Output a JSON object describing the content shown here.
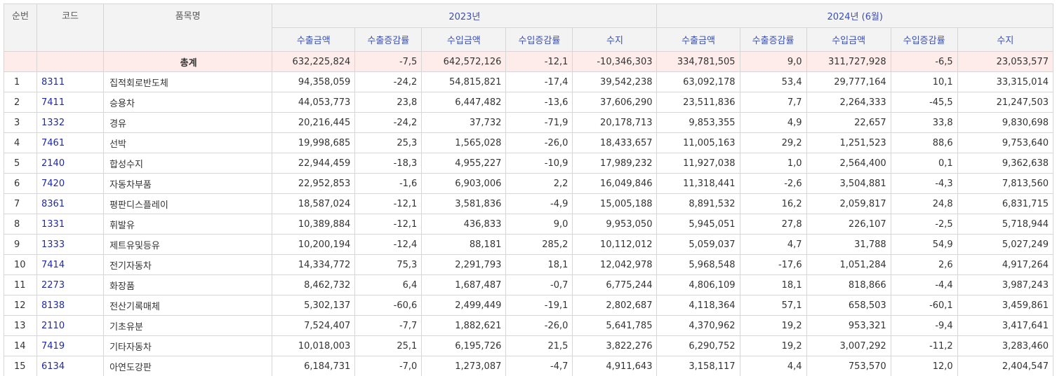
{
  "headers": {
    "rank": "순번",
    "code": "코드",
    "name": "품목명",
    "year1": "2023년",
    "year2": "2024년 (6월)",
    "cols": [
      "수출금액",
      "수출증감률",
      "수입금액",
      "수입증감률",
      "수지"
    ]
  },
  "total": {
    "name": "총계",
    "values": [
      "632,225,824",
      "-7,5",
      "642,572,126",
      "-12,1",
      "-10,346,303",
      "334,781,505",
      "9,0",
      "311,727,928",
      "-6,5",
      "23,053,577"
    ]
  },
  "rows": [
    {
      "rank": "1",
      "code": "8311",
      "name": "집적회로반도체",
      "values": [
        "94,358,059",
        "-24,2",
        "54,815,821",
        "-17,4",
        "39,542,238",
        "63,092,178",
        "53,4",
        "29,777,164",
        "10,1",
        "33,315,014"
      ]
    },
    {
      "rank": "2",
      "code": "7411",
      "name": "승용차",
      "values": [
        "44,053,773",
        "23,8",
        "6,447,482",
        "-13,6",
        "37,606,290",
        "23,511,836",
        "7,7",
        "2,264,333",
        "-45,5",
        "21,247,503"
      ]
    },
    {
      "rank": "3",
      "code": "1332",
      "name": "경유",
      "values": [
        "20,216,445",
        "-24,2",
        "37,732",
        "-71,9",
        "20,178,713",
        "9,853,355",
        "4,9",
        "22,657",
        "33,8",
        "9,830,698"
      ]
    },
    {
      "rank": "4",
      "code": "7461",
      "name": "선박",
      "values": [
        "19,998,685",
        "25,3",
        "1,565,028",
        "-26,0",
        "18,433,657",
        "11,005,163",
        "29,2",
        "1,251,523",
        "88,6",
        "9,753,640"
      ]
    },
    {
      "rank": "5",
      "code": "2140",
      "name": "합성수지",
      "values": [
        "22,944,459",
        "-18,3",
        "4,955,227",
        "-10,9",
        "17,989,232",
        "11,927,038",
        "1,0",
        "2,564,400",
        "0,1",
        "9,362,638"
      ]
    },
    {
      "rank": "6",
      "code": "7420",
      "name": "자동차부품",
      "values": [
        "22,952,853",
        "-1,6",
        "6,903,006",
        "2,2",
        "16,049,846",
        "11,318,441",
        "-2,6",
        "3,504,881",
        "-4,3",
        "7,813,560"
      ]
    },
    {
      "rank": "7",
      "code": "8361",
      "name": "평판디스플레이",
      "values": [
        "18,587,024",
        "-12,1",
        "3,581,836",
        "-4,9",
        "15,005,188",
        "8,891,532",
        "16,2",
        "2,059,817",
        "24,8",
        "6,831,715"
      ]
    },
    {
      "rank": "8",
      "code": "1331",
      "name": "휘발유",
      "values": [
        "10,389,884",
        "-12,1",
        "436,833",
        "9,0",
        "9,953,050",
        "5,945,051",
        "27,8",
        "226,107",
        "-2,5",
        "5,718,944"
      ]
    },
    {
      "rank": "9",
      "code": "1333",
      "name": "제트유및등유",
      "values": [
        "10,200,194",
        "-12,4",
        "88,181",
        "285,2",
        "10,112,012",
        "5,059,037",
        "4,7",
        "31,788",
        "54,9",
        "5,027,249"
      ]
    },
    {
      "rank": "10",
      "code": "7414",
      "name": "전기자동차",
      "values": [
        "14,334,772",
        "75,3",
        "2,291,793",
        "18,1",
        "12,042,978",
        "5,968,548",
        "-17,6",
        "1,051,284",
        "2,6",
        "4,917,264"
      ]
    },
    {
      "rank": "11",
      "code": "2273",
      "name": "화장품",
      "values": [
        "8,462,732",
        "6,4",
        "1,687,487",
        "-0,7",
        "6,775,244",
        "4,806,109",
        "18,1",
        "818,866",
        "-4,4",
        "3,987,243"
      ]
    },
    {
      "rank": "12",
      "code": "8138",
      "name": "전산기록매체",
      "values": [
        "5,302,137",
        "-60,6",
        "2,499,449",
        "-19,1",
        "2,802,687",
        "4,118,364",
        "57,1",
        "658,503",
        "-60,1",
        "3,459,861"
      ]
    },
    {
      "rank": "13",
      "code": "2110",
      "name": "기초유분",
      "values": [
        "7,524,407",
        "-7,7",
        "1,882,621",
        "-26,0",
        "5,641,785",
        "4,370,962",
        "19,2",
        "953,321",
        "-9,4",
        "3,417,641"
      ]
    },
    {
      "rank": "14",
      "code": "7419",
      "name": "기타자동차",
      "values": [
        "10,018,003",
        "25,1",
        "6,195,726",
        "21,5",
        "3,822,276",
        "6,290,752",
        "19,2",
        "3,007,292",
        "-11,2",
        "3,283,460"
      ]
    },
    {
      "rank": "15",
      "code": "6134",
      "name": "아연도강판",
      "values": [
        "6,184,731",
        "-7,0",
        "1,273,087",
        "-4,7",
        "4,911,643",
        "3,158,117",
        "4,4",
        "753,570",
        "12,0",
        "2,404,547"
      ]
    }
  ]
}
